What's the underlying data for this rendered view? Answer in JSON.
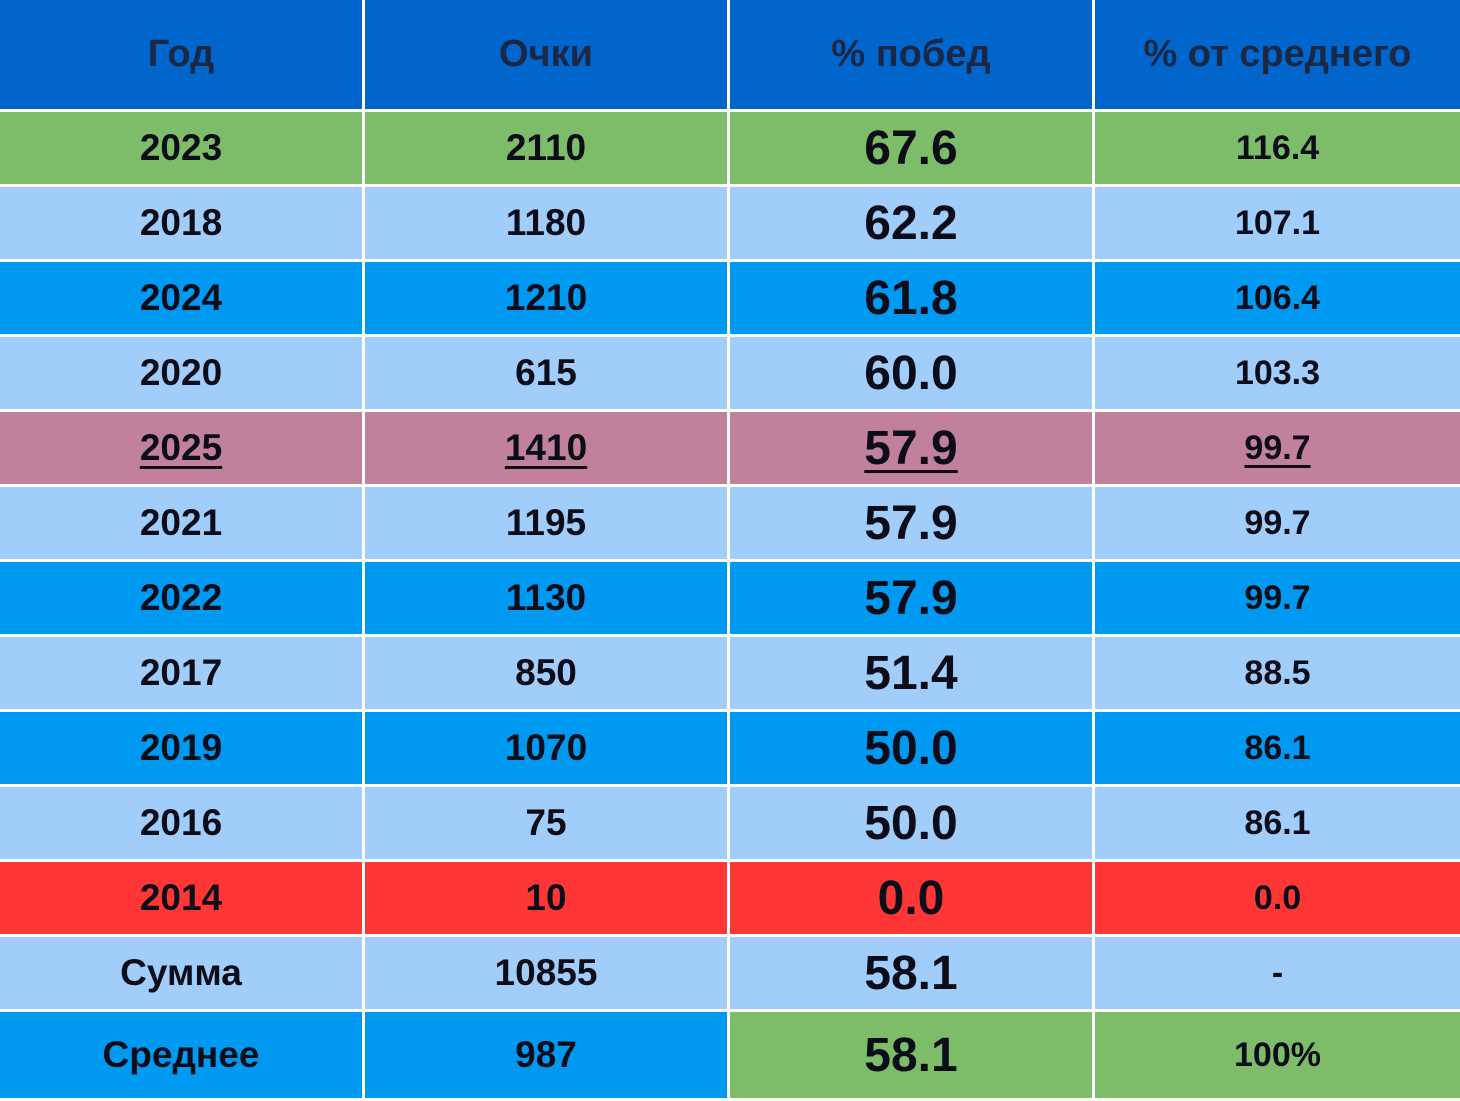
{
  "table": {
    "header": [
      "Год",
      "Очки",
      "% побед",
      "% от среднего"
    ],
    "rows": [
      [
        "2023",
        "2110",
        "67.6",
        "116.4"
      ],
      [
        "2018",
        "1180",
        "62.2",
        "107.1"
      ],
      [
        "2024",
        "1210",
        "61.8",
        "106.4"
      ],
      [
        "2020",
        "615",
        "60.0",
        "103.3"
      ],
      [
        "2025",
        "1410",
        "57.9",
        "99.7"
      ],
      [
        "2021",
        "1195",
        "57.9",
        "99.7"
      ],
      [
        "2022",
        "1130",
        "57.9",
        "99.7"
      ],
      [
        "2017",
        "850",
        "51.4",
        "88.5"
      ],
      [
        "2019",
        "1070",
        "50.0",
        "86.1"
      ],
      [
        "2016",
        "75",
        "50.0",
        "86.1"
      ],
      [
        "2014",
        "10",
        "0.0",
        "0.0"
      ],
      [
        "Сумма",
        "10855",
        "58.1",
        "-"
      ],
      [
        "Среднее",
        "987",
        "58.1",
        "100%"
      ]
    ]
  }
}
